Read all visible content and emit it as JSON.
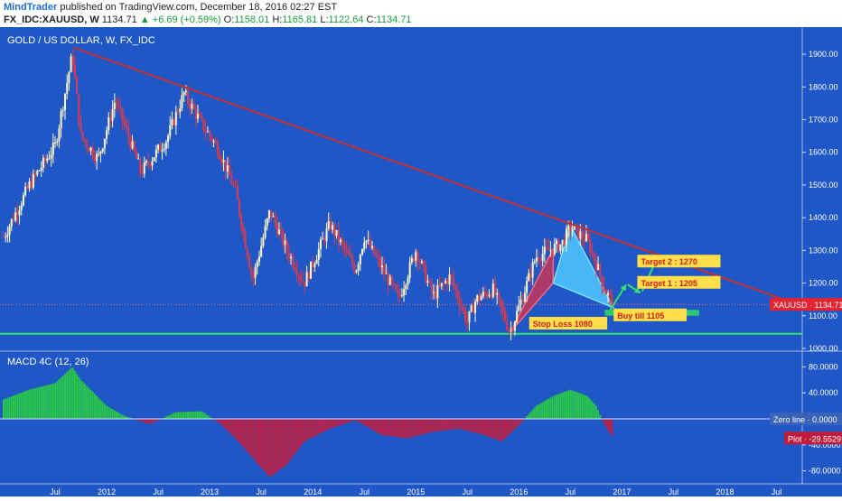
{
  "header": {
    "author": "MindTrader",
    "published": " published on TradingView.com, December 18, 2016 02:27 EST",
    "symbol": "FX_IDC:XAUUSD, W",
    "last": "1134.71",
    "change_arrow": "▲",
    "change": "+6.69 (+0.59%)",
    "o_label": "O:",
    "o": "1158.01",
    "h_label": "H:",
    "h": "1165.81",
    "l_label": "L:",
    "l": "1122.64",
    "c_label": "C:",
    "c": "1134.71"
  },
  "main_title": "GOLD / US DOLLAR, W, FX_IDC",
  "macd_title": "MACD 4C (12, 26)",
  "colors": {
    "background": "#1f57c6",
    "up_candle": "#fff8c8",
    "down_candle": "#e03a4a",
    "trendline": "#c8302f",
    "support": "#33e06a",
    "macd_pos": "#29c44a",
    "macd_neg": "#b5234a",
    "pattern_left": "#d8304a",
    "pattern_right": "#4fc8ff"
  },
  "chart_data": [
    {
      "type": "line",
      "title": "GOLD / US DOLLAR, W, FX_IDC",
      "series": [
        {
          "name": "XAUUSD",
          "x": [
            "2011-01",
            "2011-04",
            "2011-07",
            "2011-09",
            "2011-10",
            "2011-12",
            "2012-02",
            "2012-05",
            "2012-08",
            "2012-10",
            "2012-12",
            "2013-02",
            "2013-04",
            "2013-06",
            "2013-08",
            "2013-10",
            "2013-12",
            "2014-03",
            "2014-06",
            "2014-07",
            "2014-10",
            "2014-11",
            "2015-01",
            "2015-03",
            "2015-05",
            "2015-07",
            "2015-08",
            "2015-10",
            "2015-12",
            "2016-03",
            "2016-06",
            "2016-07",
            "2016-09",
            "2016-10",
            "2016-11",
            "2016-12"
          ],
          "values": [
            1340,
            1500,
            1620,
            1900,
            1650,
            1580,
            1760,
            1540,
            1640,
            1780,
            1690,
            1610,
            1480,
            1210,
            1420,
            1300,
            1200,
            1380,
            1240,
            1340,
            1200,
            1150,
            1300,
            1160,
            1220,
            1080,
            1150,
            1180,
            1050,
            1280,
            1320,
            1370,
            1330,
            1260,
            1180,
            1134.71
          ]
        }
      ],
      "ylim": [
        1000,
        1950
      ],
      "yticks": [
        "1900.00",
        "1800.00",
        "1700.00",
        "1600.00",
        "1500.00",
        "1400.00",
        "1300.00",
        "1200.00",
        "1100.00",
        "1000.00"
      ],
      "last_label": "XAUUSD · 1134.71",
      "annotations": [
        "Target 2 : 1270",
        "Target 1 : 1205",
        "Buy till 1105",
        "Stop Loss 1080"
      ]
    },
    {
      "type": "bar",
      "title": "MACD 4C (12, 26)",
      "x": [
        "2011-01",
        "2011-04",
        "2011-07",
        "2011-09",
        "2011-10",
        "2012-01",
        "2012-03",
        "2012-06",
        "2012-09",
        "2012-12",
        "2013-02",
        "2013-04",
        "2013-06",
        "2013-08",
        "2013-10",
        "2013-12",
        "2014-03",
        "2014-06",
        "2014-09",
        "2014-12",
        "2015-03",
        "2015-06",
        "2015-09",
        "2015-11",
        "2016-01",
        "2016-03",
        "2016-05",
        "2016-07",
        "2016-09",
        "2016-10",
        "2016-11",
        "2016-12"
      ],
      "values": [
        30,
        45,
        55,
        80,
        60,
        20,
        5,
        -8,
        10,
        12,
        -5,
        -30,
        -60,
        -90,
        -70,
        -35,
        -15,
        -2,
        -25,
        -30,
        -20,
        -15,
        -25,
        -35,
        -10,
        20,
        35,
        45,
        35,
        20,
        -10,
        -29.5529
      ],
      "ylim": [
        -100,
        100
      ],
      "yticks": [
        "80.0000",
        "40.0000",
        "0.0000",
        "-40.0000",
        "-80.0000"
      ],
      "legend": [
        "Zero line · 0.0000",
        "Plot · -29.5529"
      ]
    }
  ],
  "x_axis_ticks": [
    "Jul",
    "2012",
    "Jul",
    "2013",
    "Jul",
    "2014",
    "Jul",
    "2015",
    "Jul",
    "2016",
    "Jul",
    "2017",
    "Jul",
    "2018",
    "Jul"
  ]
}
